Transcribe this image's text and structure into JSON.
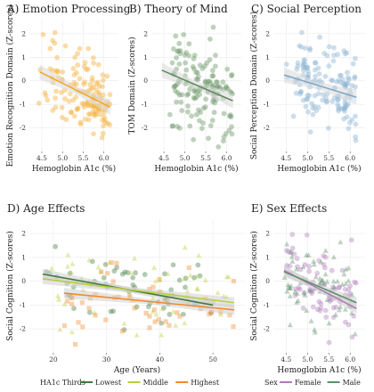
{
  "chart_data": [
    {
      "id": "A",
      "type": "scatter",
      "title": "A) Emotion Processing",
      "xlabel": "Hemoglobin A1c (%)",
      "ylabel": "Emotion Recognition Domain (Z-scores)",
      "xlim": [
        4.2,
        6.35
      ],
      "ylim": [
        -3,
        2.6
      ],
      "xticks": [
        "4.5",
        "5.0",
        "5.5",
        "6.0"
      ],
      "yticks": [
        "2",
        "1",
        "0",
        "-1",
        "-2"
      ],
      "color": "#f3b13d",
      "band": "#d9d9d9",
      "trend": {
        "x": [
          4.45,
          6.15
        ],
        "y": [
          0.38,
          -1.12
        ]
      }
    },
    {
      "id": "B",
      "type": "scatter",
      "title": "B) Theory of Mind",
      "xlabel": "Hemoglobin A1c (%)",
      "ylabel": "TOM Domain (Z-scores)",
      "xlim": [
        4.2,
        6.35
      ],
      "ylim": [
        -3,
        2.6
      ],
      "xticks": [
        "4.5",
        "5.0",
        "5.5",
        "6.0"
      ],
      "yticks": [
        "2",
        "1",
        "0",
        "-1",
        "-2"
      ],
      "color": "#6f9a6a",
      "band": "#d9d9d9",
      "trend": {
        "x": [
          4.45,
          6.15
        ],
        "y": [
          0.45,
          -0.85
        ]
      }
    },
    {
      "id": "C",
      "type": "scatter",
      "title": "C) Social Perception",
      "xlabel": "Hemoglobin A1c (%)",
      "ylabel": "Social Perception Domain (Z-scores)",
      "xlim": [
        4.2,
        6.35
      ],
      "ylim": [
        -3,
        2.6
      ],
      "xticks": [
        "4.5",
        "5.0",
        "5.5",
        "6.0"
      ],
      "yticks": [
        "2",
        "1",
        "0",
        "-1",
        "-2"
      ],
      "color": "#8fb5d5",
      "band": "#d9d9d9",
      "trend": {
        "x": [
          4.45,
          6.15
        ],
        "y": [
          0.25,
          -0.7
        ]
      }
    },
    {
      "id": "D",
      "type": "scatter",
      "title": "D) Age Effects",
      "xlabel": "Age (Years)",
      "ylabel": "Social Cognition (Z-scores)",
      "xlim": [
        15.5,
        56
      ],
      "ylim": [
        -3,
        2.6
      ],
      "xticks": [
        "20",
        "30",
        "40",
        "50"
      ],
      "yticks": [
        "2",
        "1",
        "0",
        "-1",
        "-2"
      ],
      "legend_title": "HA1c Thirds",
      "series": [
        {
          "name": "Lowest",
          "color": "#3f7a3f",
          "trend": {
            "x": [
              18,
              50
            ],
            "y": [
              0.3,
              -1.0
            ]
          }
        },
        {
          "name": "Middle",
          "color": "#b9cf3a",
          "trend": {
            "x": [
              18,
              54
            ],
            "y": [
              0.1,
              -0.9
            ]
          }
        },
        {
          "name": "Highest",
          "color": "#f28a2e",
          "trend": {
            "x": [
              22,
              54
            ],
            "y": [
              -0.5,
              -1.2
            ]
          }
        }
      ]
    },
    {
      "id": "E",
      "type": "scatter",
      "title": "E) Sex Effects",
      "xlabel": "Hemoglobin A1c (%)",
      "ylabel": "Social Cognition (Z-scores)",
      "xlim": [
        4.2,
        6.35
      ],
      "ylim": [
        -3,
        2.6
      ],
      "xticks": [
        "4.5",
        "5.0",
        "5.5",
        "6.0"
      ],
      "yticks": [
        "2",
        "1",
        "0",
        "-1",
        "-2"
      ],
      "legend_title": "Sex",
      "series": [
        {
          "name": "Female",
          "color": "#b07ab8",
          "trend": {
            "x": [
              4.45,
              6.15
            ],
            "y": [
              0.45,
              -1.15
            ]
          }
        },
        {
          "name": "Male",
          "color": "#5f8f6a",
          "trend": {
            "x": [
              4.45,
              6.15
            ],
            "y": [
              0.4,
              -0.9
            ]
          }
        }
      ]
    }
  ]
}
